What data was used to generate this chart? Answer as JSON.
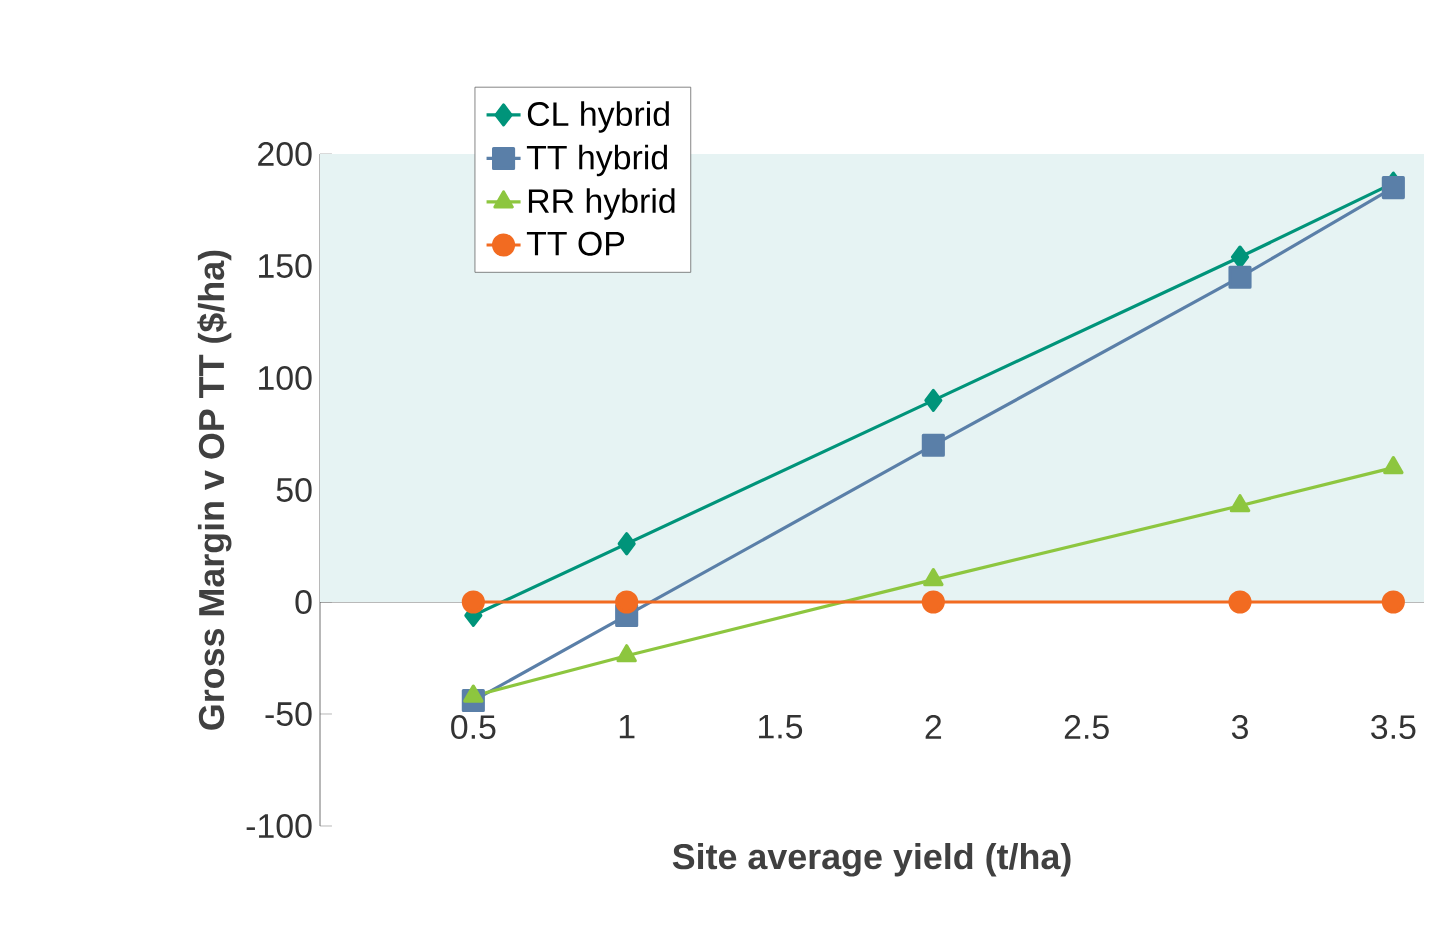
{
  "chart_data": {
    "type": "line",
    "xlabel": "Site average yield (t/ha)",
    "ylabel": "Gross Margin v OP TT ($/ha)",
    "x": [
      0.5,
      1,
      2,
      3,
      3.5
    ],
    "series": [
      {
        "name": "CL hybrid",
        "color": "#00947a",
        "marker": "diamond",
        "values": [
          -6,
          26,
          90,
          154,
          187
        ]
      },
      {
        "name": "TT hybrid",
        "color": "#5a7fa8",
        "marker": "square",
        "values": [
          -44,
          -6,
          70,
          145,
          185
        ]
      },
      {
        "name": "RR hybrid",
        "color": "#8dc63f",
        "marker": "triangle",
        "values": [
          -42,
          -24,
          10,
          43,
          60
        ]
      },
      {
        "name": "TT OP",
        "color": "#f26b21",
        "marker": "circle",
        "values": [
          0,
          0,
          0,
          0,
          0
        ]
      }
    ],
    "xlim": [
      0,
      3.6
    ],
    "ylim": [
      -100,
      200
    ],
    "xticks": [
      0.5,
      1,
      1.5,
      2,
      2.5,
      3,
      3.5
    ],
    "yticks": [
      -100,
      -50,
      0,
      50,
      100,
      150,
      200
    ],
    "bands": [
      {
        "axis": "y",
        "from": 0,
        "to": 200,
        "color": "#e6f3f3"
      }
    ],
    "legend": "top left",
    "line_style": "solid"
  }
}
